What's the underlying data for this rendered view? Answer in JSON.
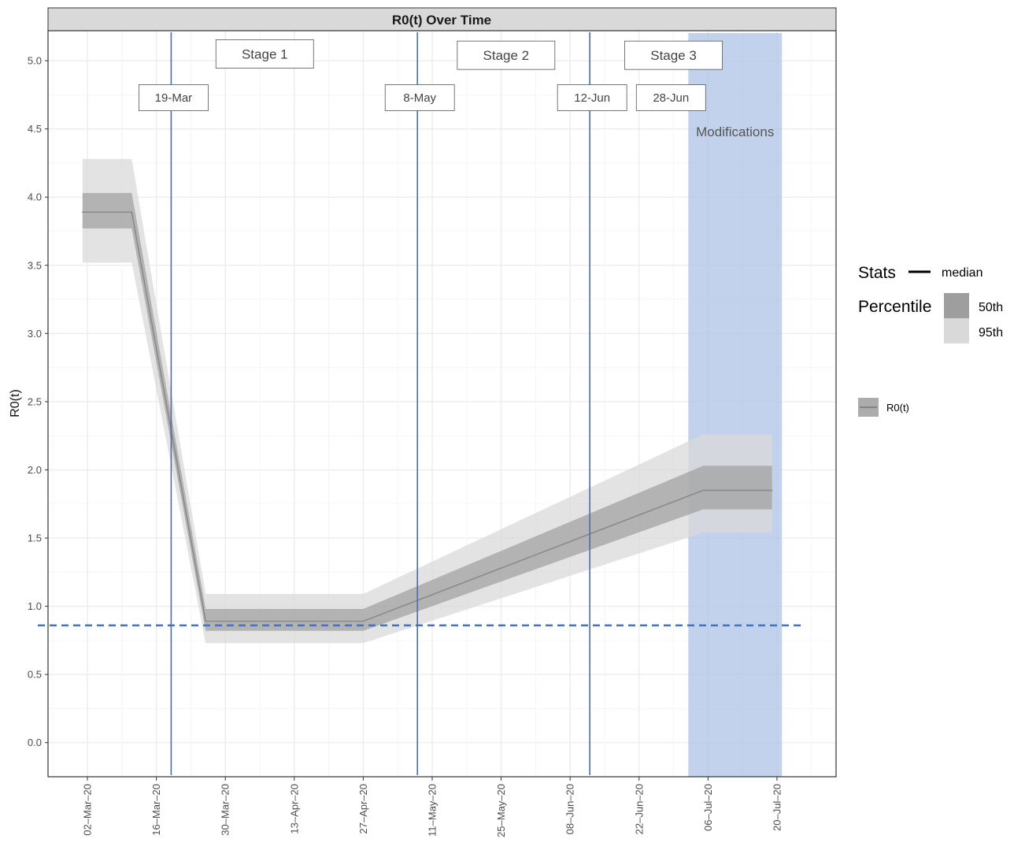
{
  "chart_data": {
    "type": "line",
    "title": "R0(t) Over Time",
    "ylabel": "R0(t)",
    "xlabel": "",
    "ylim": [
      -0.25,
      5.22
    ],
    "xlim": [
      "2020-02-23",
      "2020-08-01"
    ],
    "y_ticks": [
      0.0,
      0.5,
      1.0,
      1.5,
      2.0,
      2.5,
      3.0,
      3.5,
      4.0,
      4.5,
      5.0
    ],
    "y_tick_labels": [
      "0.0",
      "0.5",
      "1.0",
      "1.5",
      "2.0",
      "2.5",
      "3.0",
      "3.5",
      "4.0",
      "4.5",
      "5.0"
    ],
    "x_ticks": [
      "2020-03-02",
      "2020-03-16",
      "2020-03-30",
      "2020-04-13",
      "2020-04-27",
      "2020-05-11",
      "2020-05-25",
      "2020-06-08",
      "2020-06-22",
      "2020-07-06",
      "2020-07-20"
    ],
    "x_tick_labels": [
      "02–Mar–20",
      "16–Mar–20",
      "30–Mar–20",
      "13–Apr–20",
      "27–Apr–20",
      "11–May–20",
      "25–May–20",
      "08–Jun–20",
      "22–Jun–20",
      "06–Jul–20",
      "20–Jul–20"
    ],
    "grid": true,
    "series": [
      {
        "name": "R0(t)",
        "points": [
          {
            "date": "2020-03-01",
            "median": 3.89,
            "p50_low": 3.77,
            "p50_high": 4.03,
            "p95_low": 3.52,
            "p95_high": 4.28
          },
          {
            "date": "2020-03-11",
            "median": 3.89,
            "p50_low": 3.77,
            "p50_high": 4.03,
            "p95_low": 3.52,
            "p95_high": 4.28
          },
          {
            "date": "2020-03-26",
            "median": 0.89,
            "p50_low": 0.82,
            "p50_high": 0.98,
            "p95_low": 0.73,
            "p95_high": 1.09
          },
          {
            "date": "2020-04-27",
            "median": 0.89,
            "p50_low": 0.82,
            "p50_high": 0.98,
            "p95_low": 0.73,
            "p95_high": 1.09
          },
          {
            "date": "2020-07-05",
            "median": 1.85,
            "p50_low": 1.71,
            "p50_high": 2.03,
            "p95_low": 1.54,
            "p95_high": 2.26
          },
          {
            "date": "2020-07-19",
            "median": 1.85,
            "p50_low": 1.71,
            "p50_high": 2.03,
            "p95_low": 1.54,
            "p95_high": 2.26
          }
        ]
      }
    ],
    "reference_line": {
      "y": 0.86,
      "style": "dashed",
      "color": "#4472c4"
    },
    "vertical_lines": [
      {
        "date": "2020-03-19",
        "label": "19-Mar"
      },
      {
        "date": "2020-05-08",
        "label": "8-May"
      },
      {
        "date": "2020-06-12",
        "label": "12-Jun"
      }
    ],
    "date_labels_without_line": [
      {
        "date": "2020-06-28",
        "label": "28-Jun"
      }
    ],
    "stage_labels": [
      {
        "label": "Stage 1",
        "date": "2020-04-07",
        "y": 5.05
      },
      {
        "label": "Stage 2",
        "date": "2020-05-26",
        "y": 5.04
      },
      {
        "label": "Stage 3",
        "date": "2020-06-29",
        "y": 5.04
      }
    ],
    "shaded_region": {
      "start": "2020-07-02",
      "end": "2020-07-21",
      "label": "Modifications",
      "color": "#aec3e6"
    },
    "colors": {
      "median_line": "#8a8a8a",
      "band_50": "#9e9e9e",
      "band_95": "#d9d9d9",
      "vline": "#4a6fa5",
      "panel_border": "#333333",
      "strip_fill": "#d9d9d9",
      "grid_major": "#ebebeb"
    },
    "legend": {
      "placement": "right",
      "stats_title": "Stats",
      "stats_item": "median",
      "percentile_title": "Percentile",
      "percentile_items": [
        "50th",
        "95th"
      ],
      "series_key": "R0(t)"
    }
  }
}
